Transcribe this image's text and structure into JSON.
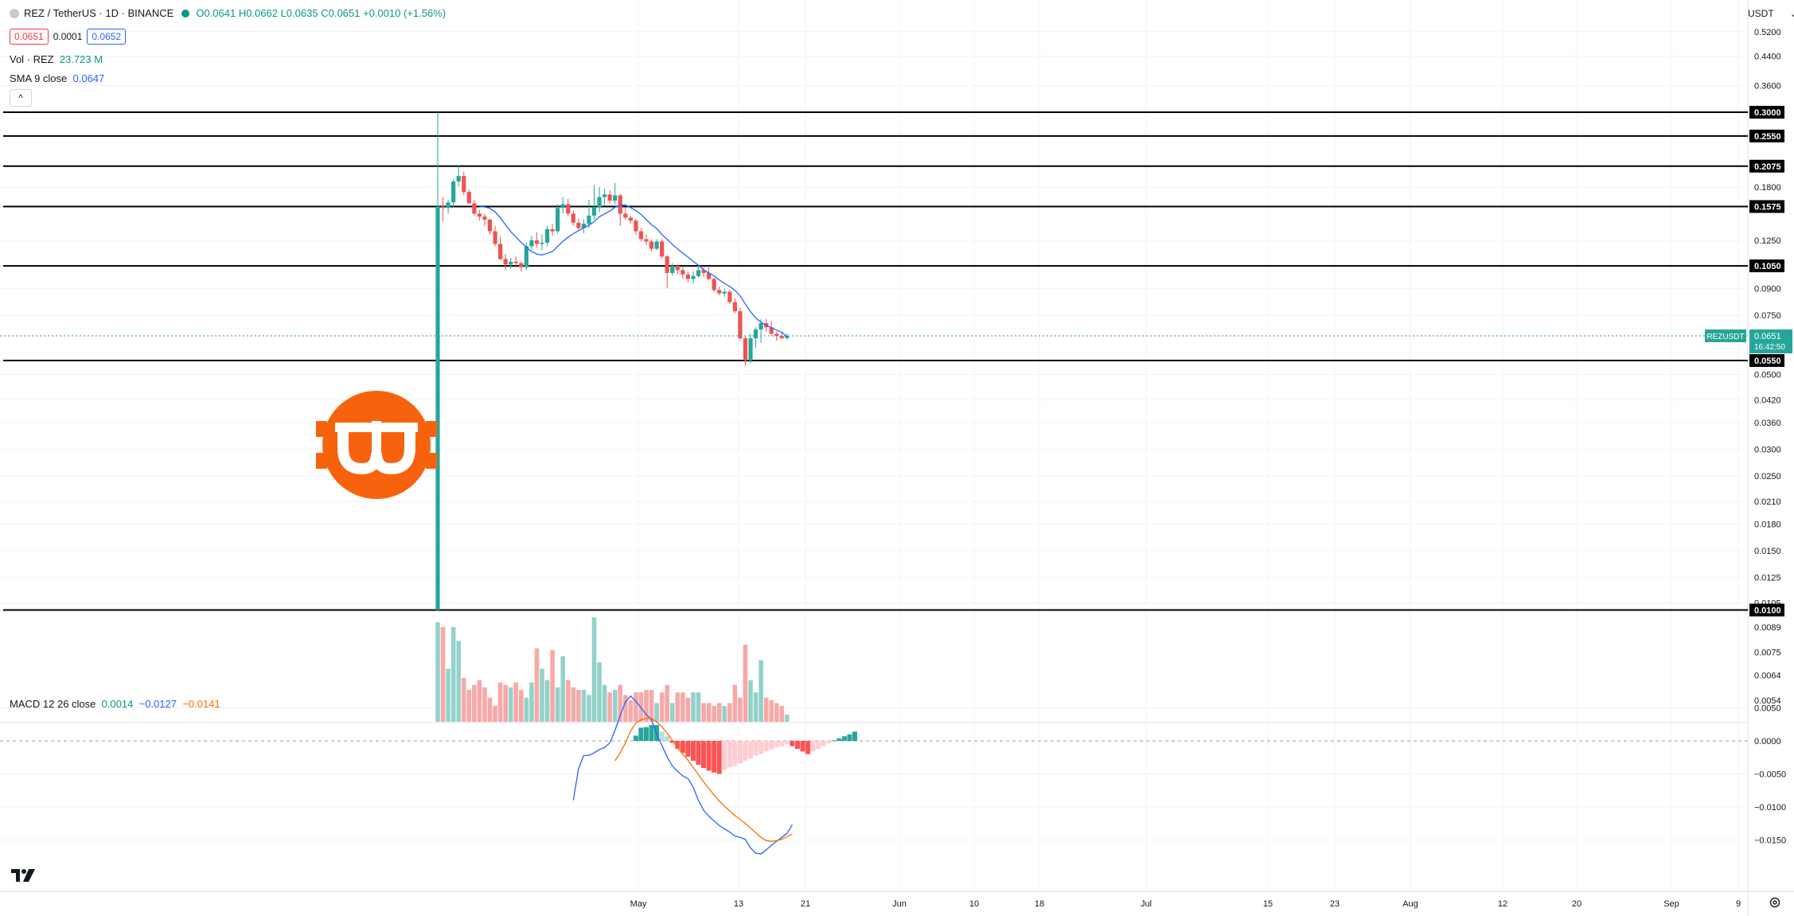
{
  "header": {
    "symbol": "REZ / TetherUS · 1D · BINANCE",
    "open": "O0.0641",
    "high": "H0.0662",
    "low": "L0.0635",
    "close": "C0.0651",
    "change": "+0.0010 (+1.56%)",
    "bid": "0.0651",
    "spread": "0.0001",
    "ask": "0.0652",
    "vol_label": "Vol · REZ",
    "vol_value": "23.723 M",
    "sma_label": "SMA 9 close",
    "sma_value": "0.0647",
    "collapse_icon": "^"
  },
  "currency": "USDT",
  "currency_arrow": "⌄",
  "macd_legend": {
    "label": "MACD 12 26 close",
    "hist": "0.0014",
    "macd": "−0.0127",
    "signal": "−0.0141"
  },
  "colors": {
    "up": "#26a69a",
    "down": "#ef5350",
    "sma": "#2962ff",
    "macd_line": "#2962ff",
    "signal_line": "#ff6d00",
    "hline": "#000000",
    "price_tag": "#26a69a",
    "logo": "#f7630c"
  },
  "chart_data": {
    "type": "candlestick",
    "price_scale": "log",
    "price_axis_labels": [
      "0.5200",
      "0.4400",
      "0.3600",
      "0.3000",
      "0.2550",
      "0.2075",
      "0.1800",
      "0.1575",
      "0.1250",
      "0.1050",
      "0.0900",
      "0.0750",
      "0.0651",
      "0.0550",
      "0.0500",
      "0.0420",
      "0.0360",
      "0.0300",
      "0.0250",
      "0.0210",
      "0.0180",
      "0.0150",
      "0.0125",
      "0.0105",
      "0.0100",
      "0.0089",
      "0.0075",
      "0.0064",
      "0.0054"
    ],
    "horizontal_levels": [
      "0.3000",
      "0.2550",
      "0.2075",
      "0.1575",
      "0.1050",
      "0.0550",
      "0.0100"
    ],
    "last_price": {
      "symbol": "REZUSDT",
      "price": "0.0651",
      "countdown": "16:42:50"
    },
    "x_labels": [
      "May",
      "13",
      "21",
      "Jun",
      "10",
      "18",
      "Jul",
      "15",
      "23",
      "Aug",
      "12",
      "20",
      "Sep",
      "9"
    ],
    "candles": [
      [
        0.01,
        0.3,
        0.01,
        0.1575
      ],
      [
        0.1575,
        0.168,
        0.142,
        0.156
      ],
      [
        0.156,
        0.165,
        0.15,
        0.162
      ],
      [
        0.162,
        0.19,
        0.156,
        0.187
      ],
      [
        0.187,
        0.208,
        0.181,
        0.194
      ],
      [
        0.194,
        0.2,
        0.17,
        0.174
      ],
      [
        0.174,
        0.177,
        0.16,
        0.161
      ],
      [
        0.161,
        0.165,
        0.148,
        0.15
      ],
      [
        0.15,
        0.154,
        0.143,
        0.147
      ],
      [
        0.147,
        0.15,
        0.138,
        0.144
      ],
      [
        0.144,
        0.145,
        0.13,
        0.133
      ],
      [
        0.133,
        0.138,
        0.12,
        0.122
      ],
      [
        0.122,
        0.128,
        0.109,
        0.11
      ],
      [
        0.11,
        0.114,
        0.102,
        0.106
      ],
      [
        0.106,
        0.111,
        0.103,
        0.108
      ],
      [
        0.108,
        0.112,
        0.105,
        0.107
      ],
      [
        0.107,
        0.108,
        0.101,
        0.104
      ],
      [
        0.104,
        0.123,
        0.102,
        0.12
      ],
      [
        0.12,
        0.129,
        0.117,
        0.125
      ],
      [
        0.125,
        0.132,
        0.119,
        0.122
      ],
      [
        0.122,
        0.13,
        0.117,
        0.123
      ],
      [
        0.123,
        0.138,
        0.12,
        0.135
      ],
      [
        0.135,
        0.14,
        0.129,
        0.133
      ],
      [
        0.133,
        0.16,
        0.131,
        0.156
      ],
      [
        0.156,
        0.168,
        0.15,
        0.16
      ],
      [
        0.16,
        0.166,
        0.147,
        0.15
      ],
      [
        0.15,
        0.153,
        0.138,
        0.141
      ],
      [
        0.141,
        0.145,
        0.134,
        0.136
      ],
      [
        0.136,
        0.144,
        0.131,
        0.14
      ],
      [
        0.14,
        0.165,
        0.136,
        0.148
      ],
      [
        0.148,
        0.182,
        0.144,
        0.157
      ],
      [
        0.157,
        0.18,
        0.151,
        0.168
      ],
      [
        0.168,
        0.178,
        0.159,
        0.171
      ],
      [
        0.171,
        0.176,
        0.16,
        0.164
      ],
      [
        0.164,
        0.185,
        0.16,
        0.17
      ],
      [
        0.17,
        0.172,
        0.138,
        0.15
      ],
      [
        0.15,
        0.156,
        0.144,
        0.146
      ],
      [
        0.146,
        0.148,
        0.14,
        0.143
      ],
      [
        0.143,
        0.145,
        0.13,
        0.133
      ],
      [
        0.133,
        0.136,
        0.124,
        0.126
      ],
      [
        0.126,
        0.13,
        0.121,
        0.124
      ],
      [
        0.124,
        0.126,
        0.116,
        0.118
      ],
      [
        0.118,
        0.126,
        0.117,
        0.124
      ],
      [
        0.124,
        0.126,
        0.11,
        0.112
      ],
      [
        0.112,
        0.113,
        0.09,
        0.1
      ],
      [
        0.1,
        0.107,
        0.098,
        0.105
      ],
      [
        0.105,
        0.106,
        0.099,
        0.102
      ],
      [
        0.102,
        0.104,
        0.096,
        0.099
      ],
      [
        0.099,
        0.101,
        0.094,
        0.096
      ],
      [
        0.096,
        0.101,
        0.093,
        0.098
      ],
      [
        0.098,
        0.105,
        0.097,
        0.102
      ],
      [
        0.102,
        0.104,
        0.097,
        0.1
      ],
      [
        0.1,
        0.104,
        0.095,
        0.096
      ],
      [
        0.096,
        0.097,
        0.088,
        0.089
      ],
      [
        0.089,
        0.091,
        0.086,
        0.087
      ],
      [
        0.087,
        0.09,
        0.085,
        0.088
      ],
      [
        0.088,
        0.089,
        0.081,
        0.082
      ],
      [
        0.082,
        0.084,
        0.076,
        0.077
      ],
      [
        0.077,
        0.079,
        0.063,
        0.064
      ],
      [
        0.064,
        0.065,
        0.053,
        0.055
      ],
      [
        0.055,
        0.066,
        0.054,
        0.064
      ],
      [
        0.064,
        0.069,
        0.06,
        0.068
      ],
      [
        0.068,
        0.073,
        0.062,
        0.071
      ],
      [
        0.071,
        0.073,
        0.067,
        0.069
      ],
      [
        0.069,
        0.072,
        0.065,
        0.066
      ],
      [
        0.066,
        0.067,
        0.063,
        0.065
      ],
      [
        0.065,
        0.067,
        0.0635,
        0.0641
      ],
      [
        0.0641,
        0.0662,
        0.0635,
        0.0651
      ]
    ],
    "sma": [
      null,
      null,
      null,
      null,
      null,
      null,
      null,
      null,
      0.1572,
      0.1571,
      0.1556,
      0.1518,
      0.146,
      0.139,
      0.1327,
      0.1279,
      0.1232,
      0.1193,
      0.1157,
      0.1138,
      0.1131,
      0.1144,
      0.1159,
      0.1199,
      0.1241,
      0.1278,
      0.1308,
      0.1335,
      0.1363,
      0.1385,
      0.1421,
      0.1469,
      0.1497,
      0.1527,
      0.1567,
      0.1587,
      0.1592,
      0.1563,
      0.1532,
      0.1492,
      0.144,
      0.139,
      0.1355,
      0.1301,
      0.1259,
      0.1216,
      0.1178,
      0.1145,
      0.1115,
      0.1083,
      0.1055,
      0.1022,
      0.1,
      0.0981,
      0.0953,
      0.0932,
      0.0912,
      0.0889,
      0.0855,
      0.081,
      0.0768,
      0.0735,
      0.0715,
      0.07,
      0.0688,
      0.0677,
      0.0667,
      0.0647
    ],
    "volume": [
      0.0092,
      0.0089,
      0.0067,
      0.0089,
      0.0081,
      0.0063,
      0.0058,
      0.006,
      0.0062,
      0.0059,
      0.0055,
      0.0052,
      0.0061,
      0.006,
      0.0059,
      0.0061,
      0.0058,
      0.0055,
      0.0061,
      0.0077,
      0.0067,
      0.0062,
      0.0076,
      0.0059,
      0.0073,
      0.0062,
      0.0059,
      0.0058,
      0.0058,
      0.0056,
      0.0095,
      0.007,
      0.006,
      0.0057,
      0.0058,
      0.006,
      0.0056,
      0.0054,
      0.0057,
      0.0057,
      0.0058,
      0.0058,
      0.0053,
      0.0057,
      0.006,
      0.0053,
      0.0057,
      0.0057,
      0.0055,
      0.0057,
      0.0057,
      0.0053,
      0.0053,
      0.0052,
      0.0053,
      0.0052,
      0.0053,
      0.006,
      0.0055,
      0.0079,
      0.0062,
      0.0057,
      0.0071,
      0.0055,
      0.0054,
      0.0053,
      0.0052,
      0.0049
    ],
    "macd": {
      "y_labels": [
        "0.0050",
        "0.0000",
        "-0.0050",
        "-0.0100",
        "-0.0150"
      ],
      "macd_line": [
        -0.009,
        -0.0042,
        -0.0022,
        -0.0022,
        -0.0018,
        -0.0013,
        -0.001,
        -0.0003,
        0.0016,
        0.0039,
        0.0059,
        0.0068,
        0.006,
        0.005,
        0.004,
        0.0032,
        0.001,
        -0.0007,
        -0.0024,
        -0.0038,
        -0.0046,
        -0.0053,
        -0.0057,
        -0.007,
        -0.009,
        -0.0105,
        -0.0114,
        -0.0121,
        -0.0128,
        -0.0133,
        -0.0138,
        -0.0144,
        -0.0146,
        -0.0149,
        -0.0162,
        -0.017,
        -0.0171,
        -0.0165,
        -0.0158,
        -0.0152,
        -0.0146,
        -0.014,
        -0.0127
      ],
      "signal_line": [
        null,
        null,
        null,
        null,
        null,
        null,
        null,
        null,
        -0.003,
        -0.0018,
        -0.0003,
        0.0015,
        0.0027,
        0.0032,
        0.0034,
        0.0034,
        0.0029,
        0.0021,
        0.0012,
        0.0001,
        -0.001,
        -0.002,
        -0.0029,
        -0.004,
        -0.0051,
        -0.0062,
        -0.0072,
        -0.0082,
        -0.0091,
        -0.0099,
        -0.0106,
        -0.0113,
        -0.0119,
        -0.0125,
        -0.0132,
        -0.0139,
        -0.0146,
        -0.0151,
        -0.0152,
        -0.0151,
        -0.0149,
        -0.0145,
        -0.0141
      ],
      "histogram": [
        0.0008,
        0.002,
        0.0021,
        0.0024,
        0.0024,
        0.0014,
        0.0007,
        -0.0003,
        -0.0012,
        -0.0018,
        -0.0024,
        -0.003,
        -0.0036,
        -0.0041,
        -0.0045,
        -0.0048,
        -0.005,
        -0.0044,
        -0.004,
        -0.0038,
        -0.0034,
        -0.003,
        -0.0027,
        -0.0022,
        -0.002,
        -0.0016,
        -0.0013,
        -0.001,
        -0.0008,
        -0.0005,
        -0.0008,
        -0.0012,
        -0.0016,
        -0.002,
        -0.0016,
        -0.0012,
        -0.0008,
        -0.0004,
        0.0001,
        0.0004,
        0.0007,
        0.001,
        0.0014
      ],
      "hist_start_index": 38
    }
  }
}
